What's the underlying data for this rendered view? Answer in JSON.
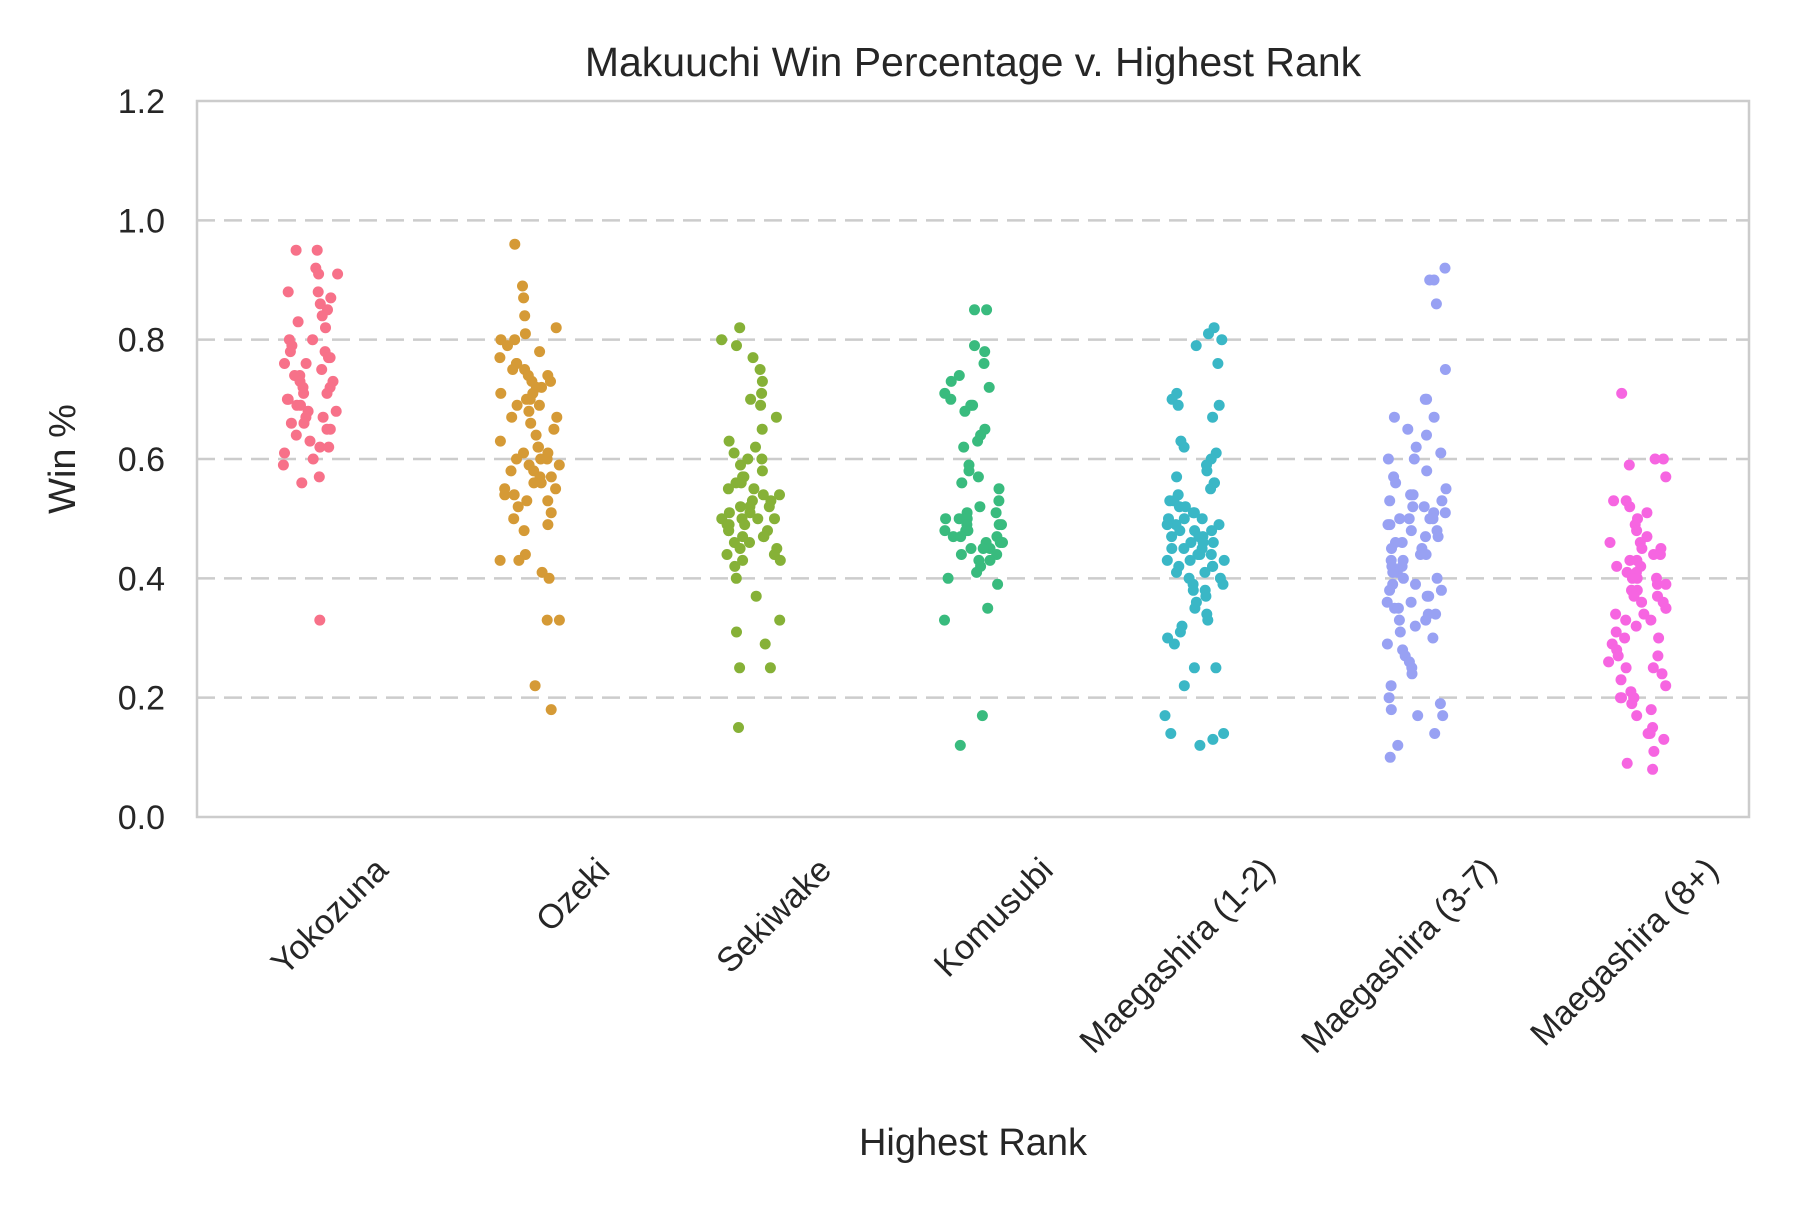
{
  "chart_data": {
    "type": "scatter",
    "subtype": "strip",
    "title": "Makuuchi Win Percentage v. Highest Rank",
    "xlabel": "Highest Rank",
    "ylabel": "Win %",
    "ylim": [
      0.0,
      1.2
    ],
    "yticks": [
      "0.0",
      "0.2",
      "0.4",
      "0.6",
      "0.8",
      "1.0",
      "1.2"
    ],
    "categories": [
      "Yokozuna",
      "Ozeki",
      "Sekiwake",
      "Komusubi",
      "Maegashira (1-2)",
      "Maegashira (3-7)",
      "Maegashira (8+)"
    ],
    "grid": {
      "y": true,
      "style": "dashed"
    },
    "legend": "none",
    "series": [
      {
        "category": "Yokozuna",
        "color": "#f77189",
        "values": [
          0.95,
          0.95,
          0.92,
          0.91,
          0.91,
          0.88,
          0.88,
          0.87,
          0.86,
          0.85,
          0.84,
          0.83,
          0.82,
          0.8,
          0.8,
          0.79,
          0.78,
          0.78,
          0.77,
          0.77,
          0.76,
          0.76,
          0.75,
          0.74,
          0.74,
          0.73,
          0.73,
          0.72,
          0.72,
          0.71,
          0.71,
          0.7,
          0.7,
          0.69,
          0.69,
          0.68,
          0.68,
          0.67,
          0.67,
          0.66,
          0.66,
          0.65,
          0.65,
          0.64,
          0.63,
          0.62,
          0.62,
          0.61,
          0.6,
          0.59,
          0.57,
          0.56,
          0.33
        ]
      },
      {
        "category": "Ozeki",
        "color": "#d59a36",
        "values": [
          0.96,
          0.89,
          0.87,
          0.84,
          0.82,
          0.81,
          0.8,
          0.8,
          0.79,
          0.78,
          0.77,
          0.76,
          0.76,
          0.75,
          0.75,
          0.74,
          0.74,
          0.73,
          0.73,
          0.72,
          0.72,
          0.71,
          0.71,
          0.7,
          0.7,
          0.69,
          0.69,
          0.68,
          0.67,
          0.67,
          0.66,
          0.65,
          0.64,
          0.63,
          0.62,
          0.62,
          0.61,
          0.61,
          0.6,
          0.6,
          0.6,
          0.59,
          0.59,
          0.58,
          0.58,
          0.57,
          0.57,
          0.56,
          0.56,
          0.55,
          0.55,
          0.54,
          0.54,
          0.53,
          0.53,
          0.52,
          0.51,
          0.5,
          0.49,
          0.48,
          0.44,
          0.43,
          0.43,
          0.41,
          0.4,
          0.33,
          0.33,
          0.22,
          0.18
        ]
      },
      {
        "category": "Sekiwake",
        "color": "#86b137",
        "values": [
          0.82,
          0.8,
          0.79,
          0.77,
          0.75,
          0.73,
          0.71,
          0.7,
          0.69,
          0.67,
          0.65,
          0.63,
          0.62,
          0.61,
          0.6,
          0.6,
          0.59,
          0.58,
          0.57,
          0.57,
          0.56,
          0.56,
          0.55,
          0.55,
          0.54,
          0.54,
          0.53,
          0.53,
          0.52,
          0.52,
          0.52,
          0.51,
          0.51,
          0.5,
          0.5,
          0.5,
          0.5,
          0.49,
          0.49,
          0.49,
          0.48,
          0.48,
          0.48,
          0.47,
          0.47,
          0.47,
          0.46,
          0.46,
          0.45,
          0.45,
          0.44,
          0.44,
          0.43,
          0.43,
          0.42,
          0.4,
          0.37,
          0.33,
          0.31,
          0.29,
          0.25,
          0.25,
          0.15
        ]
      },
      {
        "category": "Komusubi",
        "color": "#39bb7e",
        "values": [
          0.85,
          0.85,
          0.79,
          0.78,
          0.76,
          0.74,
          0.73,
          0.72,
          0.71,
          0.7,
          0.69,
          0.69,
          0.68,
          0.65,
          0.64,
          0.63,
          0.62,
          0.59,
          0.58,
          0.57,
          0.56,
          0.55,
          0.53,
          0.52,
          0.51,
          0.51,
          0.5,
          0.5,
          0.5,
          0.49,
          0.49,
          0.49,
          0.48,
          0.48,
          0.48,
          0.47,
          0.47,
          0.47,
          0.46,
          0.46,
          0.46,
          0.45,
          0.45,
          0.45,
          0.44,
          0.44,
          0.43,
          0.43,
          0.42,
          0.41,
          0.4,
          0.39,
          0.35,
          0.33,
          0.17,
          0.12
        ]
      },
      {
        "category": "Maegashira (1-2)",
        "color": "#3ab7c6",
        "values": [
          0.82,
          0.81,
          0.8,
          0.79,
          0.76,
          0.71,
          0.7,
          0.69,
          0.69,
          0.67,
          0.63,
          0.62,
          0.61,
          0.6,
          0.59,
          0.58,
          0.57,
          0.56,
          0.56,
          0.55,
          0.54,
          0.53,
          0.53,
          0.52,
          0.52,
          0.51,
          0.51,
          0.5,
          0.5,
          0.5,
          0.49,
          0.49,
          0.49,
          0.48,
          0.48,
          0.48,
          0.47,
          0.47,
          0.47,
          0.46,
          0.46,
          0.46,
          0.45,
          0.45,
          0.45,
          0.44,
          0.44,
          0.44,
          0.43,
          0.43,
          0.43,
          0.42,
          0.42,
          0.42,
          0.41,
          0.41,
          0.4,
          0.4,
          0.39,
          0.39,
          0.38,
          0.38,
          0.37,
          0.36,
          0.35,
          0.34,
          0.33,
          0.32,
          0.31,
          0.3,
          0.29,
          0.25,
          0.25,
          0.22,
          0.17,
          0.14,
          0.14,
          0.13,
          0.12
        ]
      },
      {
        "category": "Maegashira (3-7)",
        "color": "#98a1f3",
        "values": [
          0.92,
          0.9,
          0.9,
          0.86,
          0.75,
          0.7,
          0.7,
          0.67,
          0.67,
          0.65,
          0.64,
          0.62,
          0.61,
          0.6,
          0.6,
          0.58,
          0.57,
          0.56,
          0.55,
          0.54,
          0.54,
          0.53,
          0.53,
          0.52,
          0.52,
          0.51,
          0.51,
          0.5,
          0.5,
          0.5,
          0.5,
          0.49,
          0.49,
          0.48,
          0.48,
          0.47,
          0.47,
          0.46,
          0.46,
          0.45,
          0.45,
          0.44,
          0.44,
          0.43,
          0.43,
          0.42,
          0.42,
          0.41,
          0.41,
          0.4,
          0.4,
          0.39,
          0.39,
          0.38,
          0.38,
          0.37,
          0.37,
          0.36,
          0.36,
          0.35,
          0.35,
          0.34,
          0.34,
          0.33,
          0.33,
          0.32,
          0.31,
          0.3,
          0.29,
          0.28,
          0.27,
          0.26,
          0.25,
          0.24,
          0.22,
          0.2,
          0.19,
          0.18,
          0.17,
          0.17,
          0.14,
          0.12,
          0.1
        ]
      },
      {
        "category": "Maegashira (8+)",
        "color": "#f665e1",
        "values": [
          0.71,
          0.6,
          0.6,
          0.59,
          0.57,
          0.53,
          0.53,
          0.52,
          0.51,
          0.5,
          0.49,
          0.48,
          0.47,
          0.46,
          0.46,
          0.45,
          0.45,
          0.44,
          0.44,
          0.43,
          0.43,
          0.42,
          0.42,
          0.41,
          0.41,
          0.4,
          0.4,
          0.4,
          0.39,
          0.39,
          0.38,
          0.38,
          0.37,
          0.37,
          0.36,
          0.36,
          0.35,
          0.35,
          0.34,
          0.34,
          0.33,
          0.33,
          0.32,
          0.31,
          0.3,
          0.3,
          0.29,
          0.28,
          0.27,
          0.27,
          0.26,
          0.25,
          0.25,
          0.24,
          0.23,
          0.22,
          0.21,
          0.2,
          0.2,
          0.2,
          0.19,
          0.18,
          0.17,
          0.15,
          0.14,
          0.14,
          0.13,
          0.11,
          0.09,
          0.08
        ]
      }
    ]
  }
}
